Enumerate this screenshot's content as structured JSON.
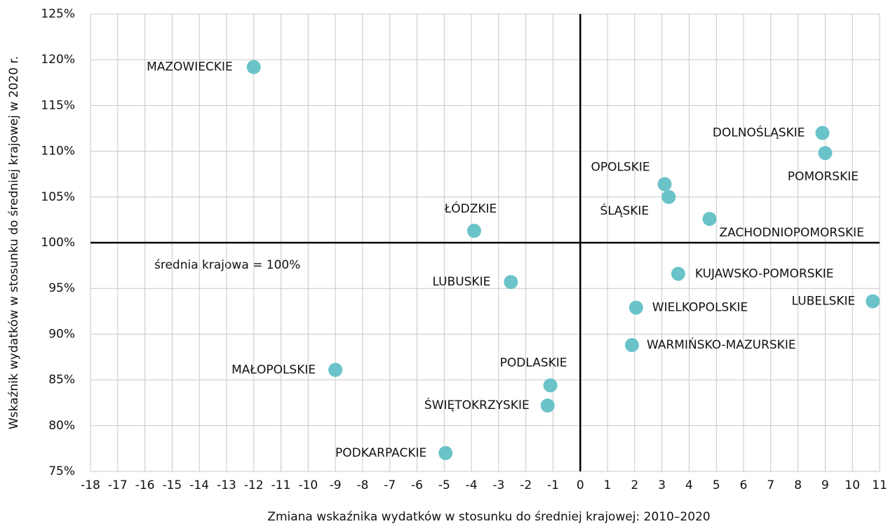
{
  "chart_data": {
    "type": "scatter",
    "xlabel": "Zmiana wskaźnika wydatków w stosunku do średniej krajowej: 2010–2020",
    "ylabel": "Wskaźnik wydatków w stosunku do średniej krajowej w 2020 r.",
    "annotation": "średnia krajowa = 100%",
    "color": "#6ac3c9",
    "grid": true,
    "labels": [
      "MAZOWIECKIE",
      "DOLNOŚLĄSKIE",
      "POMORSKIE",
      "OPOLSKIE",
      "ŚLĄSKIE",
      "ZACHODNIOPOMORSKIE",
      "ŁÓDZKIE",
      "LUBUSKIE",
      "KUJAWSKO-POMORSKIE",
      "LUBELSKIE",
      "WIELKOPOLSKIE",
      "WARMIŃSKO-MAZURSKIE",
      "MAŁOPOLSKIE",
      "PODLASKIE",
      "ŚWIĘTOKRZYSKIE",
      "PODKARPACKIE"
    ],
    "x": [
      -12.0,
      8.9,
      9.0,
      3.1,
      3.25,
      4.75,
      -3.9,
      -2.55,
      3.6,
      10.75,
      2.05,
      1.9,
      -9.0,
      -1.1,
      -1.2,
      -4.95
    ],
    "values": [
      119.2,
      112.0,
      109.8,
      106.4,
      105.0,
      102.6,
      101.3,
      95.7,
      96.6,
      93.6,
      92.9,
      88.8,
      86.1,
      84.4,
      82.2,
      77.0
    ],
    "xlim": [
      -18,
      11
    ],
    "xticks": [
      -18,
      -17,
      -16,
      -15,
      -14,
      -13,
      -12,
      -11,
      -10,
      -9,
      -8,
      -7,
      -6,
      -5,
      -4,
      -3,
      -2,
      -1,
      0,
      1,
      2,
      3,
      4,
      5,
      6,
      7,
      8,
      9,
      10,
      11
    ],
    "ylim": [
      75,
      125
    ],
    "yticks": [
      {
        "value": 75,
        "label": "75%"
      },
      {
        "value": 80,
        "label": "80%"
      },
      {
        "value": 85,
        "label": "85%"
      },
      {
        "value": 90,
        "label": "90%"
      },
      {
        "value": 95,
        "label": "95%"
      },
      {
        "value": 100,
        "label": "100%"
      },
      {
        "value": 105,
        "label": "105%"
      },
      {
        "value": 110,
        "label": "110%"
      },
      {
        "value": 115,
        "label": "115%"
      },
      {
        "value": 120,
        "label": "120%"
      },
      {
        "value": 125,
        "label": "125%"
      }
    ]
  }
}
